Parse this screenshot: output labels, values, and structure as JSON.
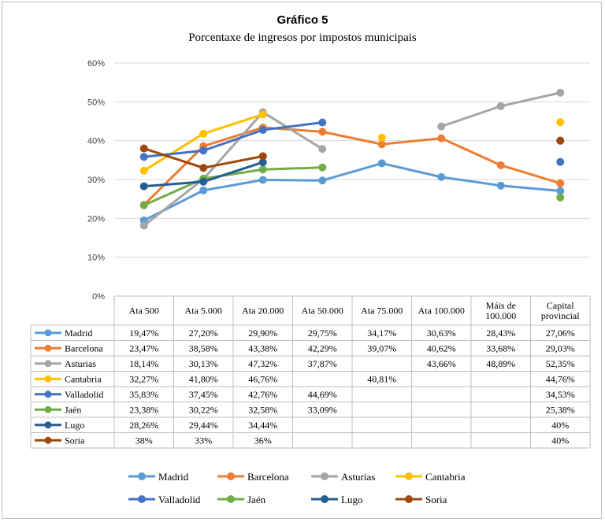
{
  "chart_data": {
    "type": "line",
    "title": "Gráfico 5",
    "subtitle": "Porcentaxe de ingresos por impostos municipais",
    "ylim": [
      0,
      60
    ],
    "yticks": [
      "0%",
      "10%",
      "20%",
      "30%",
      "40%",
      "50%",
      "60%"
    ],
    "grid": true,
    "legend_position": "bottom",
    "categories": [
      [
        "Ata 500"
      ],
      [
        "Ata 5.000"
      ],
      [
        "Ata 20.000"
      ],
      [
        "Ata 50.000"
      ],
      [
        "Ata 75.000"
      ],
      [
        "Ata 100.000"
      ],
      [
        "Máis de",
        "100.000"
      ],
      [
        "Capital",
        "provincial"
      ]
    ],
    "series": [
      {
        "name": "Madrid",
        "color": "#5b9bd5",
        "values": [
          19.47,
          27.2,
          29.9,
          29.75,
          34.17,
          30.63,
          28.43,
          27.06
        ],
        "labels": [
          "19,47%",
          "27,20%",
          "29,90%",
          "29,75%",
          "34,17%",
          "30,63%",
          "28,43%",
          "27,06%"
        ]
      },
      {
        "name": "Barcelona",
        "color": "#ed7d31",
        "values": [
          23.47,
          38.58,
          43.38,
          42.29,
          39.07,
          40.62,
          33.68,
          29.03
        ],
        "labels": [
          "23,47%",
          "38,58%",
          "43,38%",
          "42,29%",
          "39,07%",
          "40,62%",
          "33,68%",
          "29,03%"
        ]
      },
      {
        "name": "Asturias",
        "color": "#a5a5a5",
        "values": [
          18.14,
          30.13,
          47.32,
          37.87,
          null,
          43.66,
          48.89,
          52.35
        ],
        "labels": [
          "18,14%",
          "30,13%",
          "47,32%",
          "37,87%",
          "",
          "43,66%",
          "48,89%",
          "52,35%"
        ]
      },
      {
        "name": "Cantabria",
        "color": "#ffc000",
        "values": [
          32.27,
          41.8,
          46.76,
          null,
          40.81,
          null,
          null,
          44.76
        ],
        "labels": [
          "32,27%",
          "41,80%",
          "46,76%",
          "",
          "40,81%",
          "",
          "",
          "44,76%"
        ]
      },
      {
        "name": "Valladolid",
        "color": "#4472c4",
        "values": [
          35.83,
          37.45,
          42.76,
          44.69,
          null,
          null,
          null,
          34.53
        ],
        "labels": [
          "35,83%",
          "37,45%",
          "42,76%",
          "44,69%",
          "",
          "",
          "",
          "34,53%"
        ]
      },
      {
        "name": "Jaén",
        "color": "#70ad47",
        "values": [
          23.38,
          30.22,
          32.58,
          33.09,
          null,
          null,
          null,
          25.38
        ],
        "labels": [
          "23,38%",
          "30,22%",
          "32,58%",
          "33,09%",
          "",
          "",
          "",
          "25,38%"
        ]
      },
      {
        "name": "Lugo",
        "color": "#255e91",
        "values": [
          28.26,
          29.44,
          34.44,
          null,
          null,
          null,
          null,
          40
        ],
        "labels": [
          "28,26%",
          "29,44%",
          "34,44%",
          "",
          "",
          "",
          "",
          "40%"
        ]
      },
      {
        "name": "Soria",
        "color": "#9e480e",
        "values": [
          38,
          33,
          36,
          null,
          null,
          null,
          null,
          40
        ],
        "labels": [
          "38%",
          "33%",
          "36%",
          "",
          "",
          "",
          "",
          "40%"
        ]
      }
    ]
  }
}
